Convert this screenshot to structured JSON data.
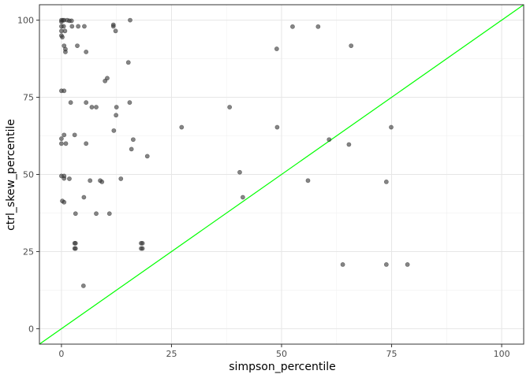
{
  "chart_data": {
    "type": "scatter",
    "xlabel": "simpson_percentile",
    "ylabel": "ctrl_skew_percentile",
    "xlim": [
      -5,
      105
    ],
    "ylim": [
      -5,
      105
    ],
    "x_ticks": [
      0,
      25,
      50,
      75,
      100
    ],
    "y_ticks": [
      0,
      25,
      50,
      75,
      100
    ],
    "x_tick_labels": [
      "0",
      "25",
      "50",
      "75",
      "100"
    ],
    "y_tick_labels": [
      "0",
      "25",
      "50",
      "75",
      "100"
    ],
    "grid": true,
    "point_color": "#333333",
    "point_opacity": 0.6,
    "reference_line": {
      "type": "identity",
      "slope": 1,
      "intercept": 0,
      "color": "#00ff00"
    },
    "points": [
      {
        "x": 0,
        "y": 100
      },
      {
        "x": 0,
        "y": 99.5
      },
      {
        "x": 0.3,
        "y": 100
      },
      {
        "x": 0.6,
        "y": 100
      },
      {
        "x": 1.3,
        "y": 100
      },
      {
        "x": 1.8,
        "y": 99.8
      },
      {
        "x": 2.3,
        "y": 99.8
      },
      {
        "x": 0,
        "y": 98
      },
      {
        "x": 0.5,
        "y": 98
      },
      {
        "x": 2.4,
        "y": 98
      },
      {
        "x": 3.8,
        "y": 98
      },
      {
        "x": 5.2,
        "y": 98
      },
      {
        "x": 11.8,
        "y": 98
      },
      {
        "x": 11.8,
        "y": 98.5
      },
      {
        "x": 15.6,
        "y": 100
      },
      {
        "x": 0,
        "y": 96.5
      },
      {
        "x": 0.8,
        "y": 96.5
      },
      {
        "x": 12.3,
        "y": 96.5
      },
      {
        "x": 0,
        "y": 95
      },
      {
        "x": 0.2,
        "y": 94.5
      },
      {
        "x": 3.6,
        "y": 91.7
      },
      {
        "x": 0.6,
        "y": 91.7
      },
      {
        "x": 0.9,
        "y": 90.6
      },
      {
        "x": 0.9,
        "y": 89.7
      },
      {
        "x": 5.6,
        "y": 89.7
      },
      {
        "x": 15.2,
        "y": 86.3
      },
      {
        "x": 10.4,
        "y": 81.2
      },
      {
        "x": 9.9,
        "y": 80.3
      },
      {
        "x": 0,
        "y": 77.1
      },
      {
        "x": 0.6,
        "y": 77.1
      },
      {
        "x": 2.1,
        "y": 73.3
      },
      {
        "x": 5.6,
        "y": 73.3
      },
      {
        "x": 15.5,
        "y": 73.3
      },
      {
        "x": 6.9,
        "y": 71.8
      },
      {
        "x": 7.9,
        "y": 71.8
      },
      {
        "x": 12.5,
        "y": 71.8
      },
      {
        "x": 38.2,
        "y": 71.8
      },
      {
        "x": 12.4,
        "y": 69.2
      },
      {
        "x": 27.3,
        "y": 65.3
      },
      {
        "x": 49,
        "y": 65.3
      },
      {
        "x": 74.9,
        "y": 65.3
      },
      {
        "x": 11.9,
        "y": 64.2
      },
      {
        "x": 0.6,
        "y": 62.8
      },
      {
        "x": 3,
        "y": 62.8
      },
      {
        "x": 0,
        "y": 61.6
      },
      {
        "x": 16.3,
        "y": 61.3
      },
      {
        "x": 60.8,
        "y": 61.3
      },
      {
        "x": 0,
        "y": 60
      },
      {
        "x": 1,
        "y": 60
      },
      {
        "x": 5.6,
        "y": 60
      },
      {
        "x": 65.3,
        "y": 59.7
      },
      {
        "x": 15.9,
        "y": 58.2
      },
      {
        "x": 19.5,
        "y": 55.9
      },
      {
        "x": 40.5,
        "y": 50.7
      },
      {
        "x": 0,
        "y": 49.5
      },
      {
        "x": 0.6,
        "y": 49.5
      },
      {
        "x": 0.6,
        "y": 48.7
      },
      {
        "x": 1.8,
        "y": 48.6
      },
      {
        "x": 13.5,
        "y": 48.6
      },
      {
        "x": 6.5,
        "y": 48
      },
      {
        "x": 8.8,
        "y": 48
      },
      {
        "x": 9.2,
        "y": 47.6
      },
      {
        "x": 56,
        "y": 48
      },
      {
        "x": 73.8,
        "y": 47.6
      },
      {
        "x": 5.1,
        "y": 42.6
      },
      {
        "x": 41.2,
        "y": 42.6
      },
      {
        "x": 0.2,
        "y": 41.4
      },
      {
        "x": 0.6,
        "y": 41
      },
      {
        "x": 3.2,
        "y": 37.3
      },
      {
        "x": 7.9,
        "y": 37.3
      },
      {
        "x": 10.9,
        "y": 37.3
      },
      {
        "x": 3,
        "y": 27.7
      },
      {
        "x": 3.2,
        "y": 27.7
      },
      {
        "x": 18.1,
        "y": 27.7
      },
      {
        "x": 18.4,
        "y": 27.7
      },
      {
        "x": 3,
        "y": 26
      },
      {
        "x": 3.2,
        "y": 26
      },
      {
        "x": 18.1,
        "y": 26
      },
      {
        "x": 18.4,
        "y": 26
      },
      {
        "x": 63.9,
        "y": 20.8
      },
      {
        "x": 73.8,
        "y": 20.8
      },
      {
        "x": 78.6,
        "y": 20.8
      },
      {
        "x": 5,
        "y": 13.9
      },
      {
        "x": 48.9,
        "y": 90.7
      },
      {
        "x": 52.5,
        "y": 97.9
      },
      {
        "x": 58.3,
        "y": 97.9
      },
      {
        "x": 65.8,
        "y": 91.7
      }
    ]
  }
}
